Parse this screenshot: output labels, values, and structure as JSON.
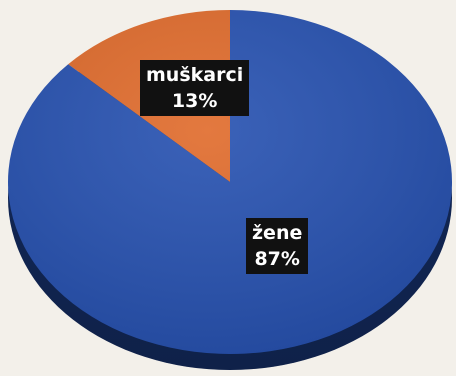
{
  "chart_data": {
    "type": "pie",
    "slices": [
      {
        "label": "žene",
        "value": 87,
        "value_label": "87%",
        "color": "#2550b0"
      },
      {
        "label": "muškarci",
        "value": 13,
        "value_label": "13%",
        "color": "#e06a2a"
      }
    ]
  }
}
